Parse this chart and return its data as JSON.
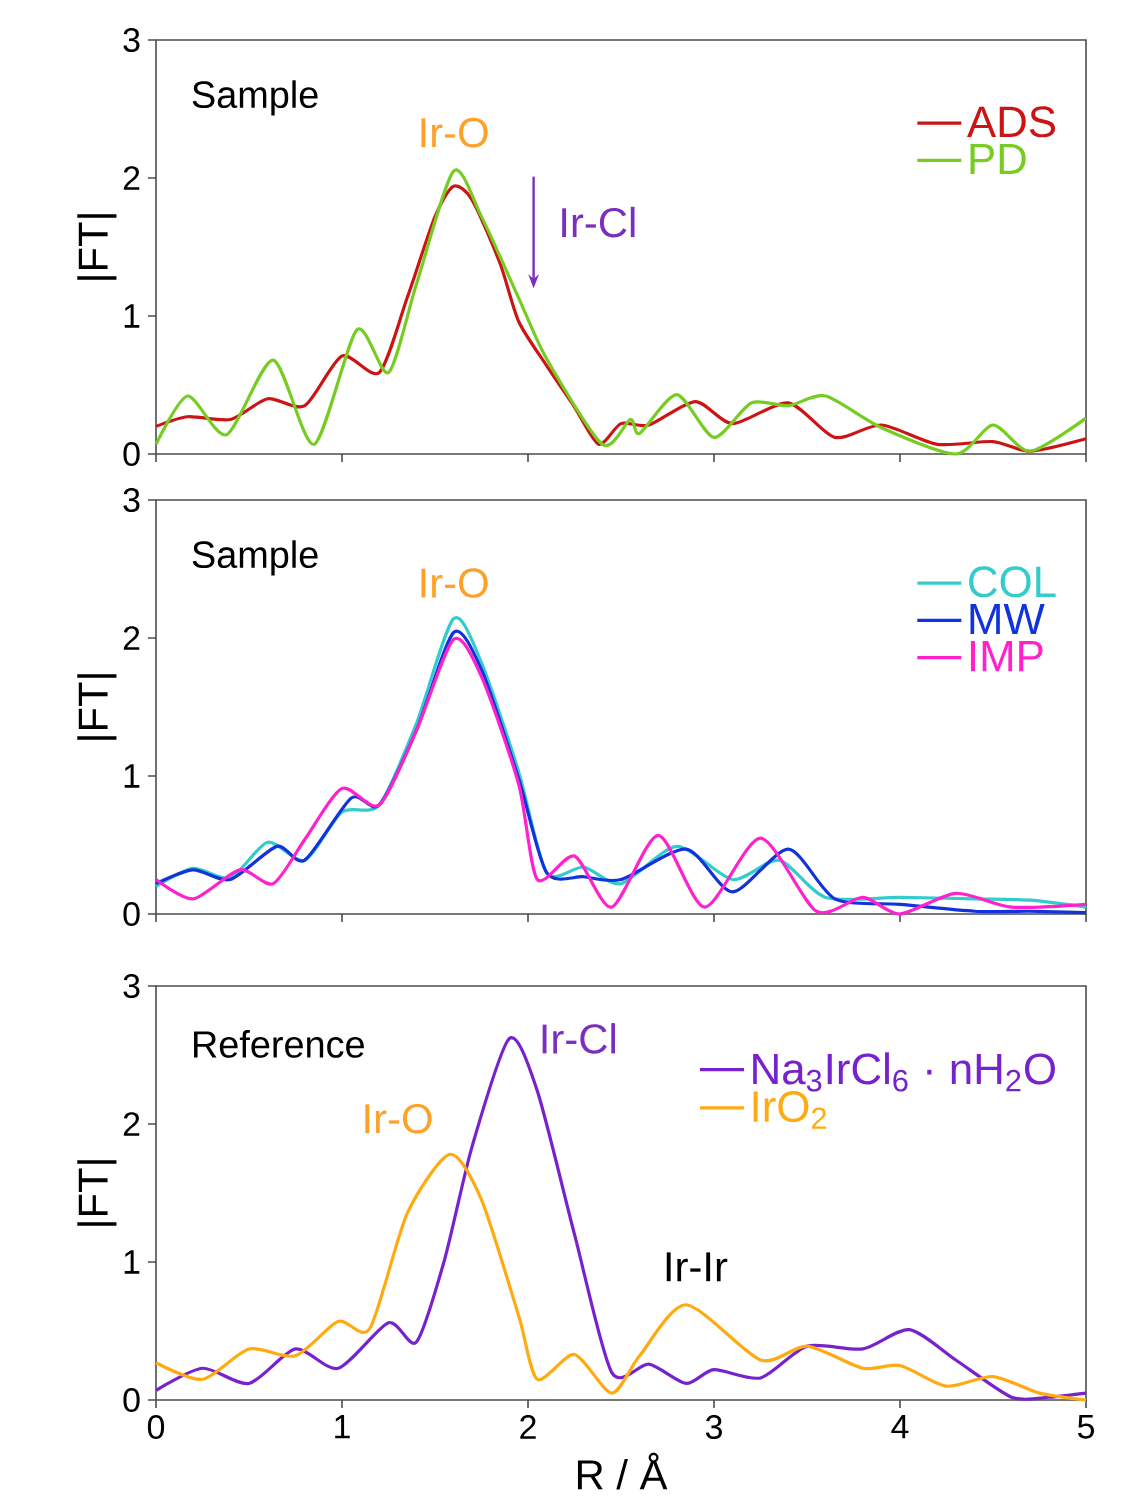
{
  "chart_data": [
    {
      "type": "line",
      "ylabel": "|FT|",
      "xlim": [
        0,
        5
      ],
      "ylim": [
        0,
        3
      ],
      "xticks": [
        0,
        1,
        2,
        3,
        4,
        5
      ],
      "yticks": [
        0,
        1,
        2,
        3
      ],
      "tick_labels": "y",
      "legend": "top right",
      "annotations": [
        "Sample",
        {
          "text": "Ir-O",
          "x": 1.6,
          "y": 2.05
        },
        "Ir-Cl"
      ],
      "series": [
        {
          "name": "ADS",
          "color": "#cc1414",
          "x": [
            0,
            0.17,
            0.4,
            0.6,
            0.8,
            1.0,
            1.2,
            1.35,
            1.5,
            1.6,
            1.7,
            1.85,
            1.95,
            2.1,
            2.25,
            2.38,
            2.5,
            2.65,
            2.9,
            3.1,
            3.4,
            3.65,
            3.9,
            4.2,
            4.5,
            4.7,
            5
          ],
          "values": [
            0.2,
            0.27,
            0.25,
            0.4,
            0.35,
            0.71,
            0.59,
            1.13,
            1.72,
            1.94,
            1.84,
            1.38,
            0.96,
            0.64,
            0.34,
            0.07,
            0.22,
            0.21,
            0.38,
            0.22,
            0.37,
            0.12,
            0.21,
            0.07,
            0.09,
            0.02,
            0.11
          ]
        },
        {
          "name": "PD",
          "color": "#77cc22",
          "x": [
            0,
            0.17,
            0.38,
            0.63,
            0.85,
            1.08,
            1.25,
            1.4,
            1.6,
            1.75,
            1.95,
            2.1,
            2.4,
            2.55,
            2.6,
            2.8,
            3.0,
            3.2,
            3.4,
            3.6,
            3.9,
            4.3,
            4.5,
            4.7,
            5
          ],
          "values": [
            0.07,
            0.42,
            0.14,
            0.68,
            0.07,
            0.9,
            0.59,
            1.23,
            2.05,
            1.72,
            1.13,
            0.69,
            0.07,
            0.25,
            0.15,
            0.43,
            0.12,
            0.37,
            0.35,
            0.42,
            0.19,
            0,
            0.21,
            0.02,
            0.26
          ]
        }
      ]
    },
    {
      "type": "line",
      "ylabel": "|FT|",
      "xlim": [
        0,
        5
      ],
      "ylim": [
        0,
        3
      ],
      "xticks": [
        0,
        1,
        2,
        3,
        4,
        5
      ],
      "yticks": [
        0,
        1,
        2,
        3
      ],
      "tick_labels": "y",
      "legend": "top right",
      "annotations": [
        "Sample",
        {
          "text": "Ir-O",
          "x": 1.6,
          "y": 2.14
        }
      ],
      "series": [
        {
          "name": "COL",
          "color": "#33cccc",
          "x": [
            0,
            0.2,
            0.4,
            0.6,
            0.8,
            1.0,
            1.2,
            1.4,
            1.6,
            1.75,
            1.95,
            2.1,
            2.3,
            2.5,
            2.8,
            3.1,
            3.35,
            3.6,
            4.0,
            4.4,
            4.7,
            5
          ],
          "values": [
            0.2,
            0.33,
            0.26,
            0.52,
            0.39,
            0.74,
            0.79,
            1.38,
            2.14,
            1.82,
            1.03,
            0.3,
            0.34,
            0.22,
            0.49,
            0.25,
            0.39,
            0.12,
            0.12,
            0.11,
            0.1,
            0.05
          ]
        },
        {
          "name": "MW",
          "color": "#1133dd",
          "x": [
            0,
            0.2,
            0.4,
            0.65,
            0.8,
            1.05,
            1.2,
            1.4,
            1.6,
            1.75,
            1.95,
            2.1,
            2.3,
            2.5,
            2.85,
            3.1,
            3.4,
            3.65,
            4.0,
            4.4,
            4.7,
            5
          ],
          "values": [
            0.22,
            0.32,
            0.25,
            0.49,
            0.39,
            0.84,
            0.79,
            1.33,
            2.04,
            1.77,
            0.98,
            0.3,
            0.27,
            0.25,
            0.47,
            0.16,
            0.47,
            0.11,
            0.07,
            0.02,
            0.02,
            0.01
          ]
        },
        {
          "name": "IMP",
          "color": "#ff22cc",
          "x": [
            0,
            0.2,
            0.45,
            0.63,
            0.8,
            1.0,
            1.2,
            1.4,
            1.6,
            1.75,
            1.95,
            2.05,
            2.25,
            2.45,
            2.7,
            2.95,
            3.25,
            3.55,
            3.8,
            4.0,
            4.3,
            4.6,
            5
          ],
          "values": [
            0.25,
            0.11,
            0.32,
            0.22,
            0.54,
            0.91,
            0.79,
            1.33,
            1.99,
            1.72,
            0.94,
            0.25,
            0.42,
            0.05,
            0.57,
            0.05,
            0.55,
            0.02,
            0.12,
            0,
            0.15,
            0.05,
            0.07
          ]
        }
      ]
    },
    {
      "type": "line",
      "xlabel": "R / Å",
      "ylabel": "|FT|",
      "xlim": [
        0,
        5
      ],
      "ylim": [
        0,
        3
      ],
      "xticks": [
        0,
        1,
        2,
        3,
        4,
        5
      ],
      "yticks": [
        0,
        1,
        2,
        3
      ],
      "legend": "top right",
      "annotations": [
        "Reference",
        {
          "text": "Ir-O",
          "x": 1.58,
          "y": 1.78
        },
        {
          "text": "Ir-Cl",
          "x": 1.9,
          "y": 2.62
        },
        {
          "text": "Ir-Ir",
          "x": 2.85,
          "y": 0.69
        }
      ],
      "series": [
        {
          "name": "Na$_{3}$IrCl$_{6}$ · nH$_{2}$O",
          "color": "#7722cc",
          "x": [
            0,
            0.25,
            0.5,
            0.75,
            0.98,
            1.25,
            1.4,
            1.55,
            1.7,
            1.9,
            2.05,
            2.25,
            2.45,
            2.65,
            2.85,
            3.0,
            3.25,
            3.5,
            3.8,
            4.05,
            4.3,
            4.6,
            4.8,
            5
          ],
          "values": [
            0.07,
            0.23,
            0.12,
            0.37,
            0.23,
            0.56,
            0.42,
            1.01,
            1.84,
            2.62,
            2.24,
            1.2,
            0.2,
            0.26,
            0.12,
            0.22,
            0.16,
            0.39,
            0.37,
            0.51,
            0.29,
            0.02,
            0.02,
            0.05
          ]
        },
        {
          "name": "IrO$_{2}$",
          "color": "#ffaa11",
          "x": [
            0,
            0.25,
            0.5,
            0.75,
            0.98,
            1.15,
            1.35,
            1.58,
            1.75,
            1.95,
            2.05,
            2.25,
            2.45,
            2.6,
            2.85,
            3.25,
            3.5,
            3.8,
            4.0,
            4.25,
            4.5,
            4.75,
            5
          ],
          "values": [
            0.27,
            0.15,
            0.37,
            0.32,
            0.57,
            0.52,
            1.35,
            1.78,
            1.45,
            0.61,
            0.15,
            0.33,
            0.05,
            0.32,
            0.69,
            0.29,
            0.39,
            0.23,
            0.25,
            0.1,
            0.17,
            0.05,
            0
          ]
        }
      ]
    }
  ]
}
